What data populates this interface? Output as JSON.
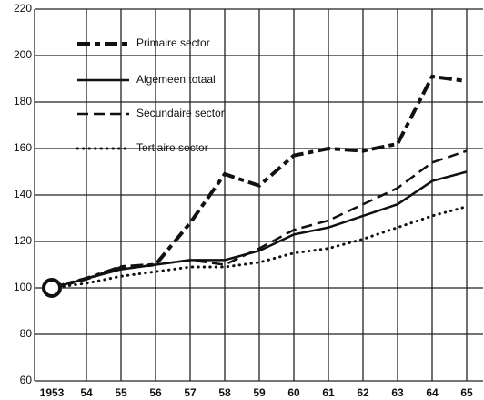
{
  "chart_data": {
    "type": "line",
    "categories": [
      "1953",
      "54",
      "55",
      "56",
      "57",
      "58",
      "59",
      "60",
      "61",
      "62",
      "63",
      "64",
      "65"
    ],
    "series": [
      {
        "name": "Primaire sector",
        "color": "#111111",
        "dash": "dashdot",
        "values": [
          100,
          104,
          109,
          110,
          128,
          149,
          144,
          157,
          160,
          159,
          162,
          191,
          189
        ]
      },
      {
        "name": "Algemeen totaal",
        "color": "#111111",
        "dash": "solid",
        "values": [
          100,
          104,
          108,
          110,
          112,
          112,
          116,
          123,
          126,
          131,
          136,
          146,
          150
        ]
      },
      {
        "name": "Secundaire sector",
        "color": "#111111",
        "dash": "dashed",
        "values": [
          100,
          104,
          109,
          110,
          112,
          110,
          117,
          125,
          129,
          136,
          143,
          154,
          159
        ]
      },
      {
        "name": "Tertiaire sector",
        "color": "#111111",
        "dash": "dotted",
        "values": [
          100,
          102,
          105,
          107,
          109,
          109,
          111,
          115,
          117,
          121,
          126,
          131,
          135
        ]
      }
    ],
    "ylim": [
      60,
      220
    ],
    "yticks": [
      60,
      80,
      100,
      120,
      140,
      160,
      180,
      200,
      220
    ],
    "grid": true,
    "legend": "upper left"
  }
}
